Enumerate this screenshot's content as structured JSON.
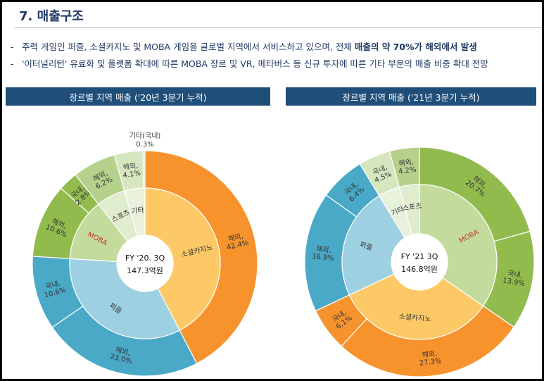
{
  "page": {
    "title": "7. 매출구조",
    "bullets": [
      {
        "prefix": "주력 게임인 퍼즐, 소셜카지노 및 MOBA 게임을 글로벌 지역에서 서비스하고 있으며, 전체 ",
        "bold": "매출의 약 70%가 해외에서 발생",
        "suffix": ""
      },
      {
        "prefix": "'이터널리턴' 유료화 및 플랫폼 확대에 따른 MOBA 장르 및 VR, 메타버스 등 신규 투자에 따른 기타 부문의 매출 비중 확대 전망",
        "bold": "",
        "suffix": ""
      }
    ]
  },
  "colors": {
    "casino_outer": "#f7932d",
    "casino_inner": "#fdc967",
    "puzzle_outer": "#4aa9c7",
    "puzzle_inner": "#9dd0e1",
    "moba_outer": "#92bb4e",
    "moba_inner": "#c3dc9e",
    "sports_outer": "#b6d18b",
    "sports_inner": "#dfeccd",
    "etc_outer": "#d6e6bf",
    "etc_inner": "#e8f1db",
    "moba_label": "#c0392b",
    "header_bg": "#1f4e79"
  },
  "chart_data": [
    {
      "type": "sunburst",
      "title": "장르별 지역 매출 ('20년 3분기 누적)",
      "center": [
        "FY '20. 3Q",
        "147.3억원"
      ],
      "inner": [
        {
          "name": "소셜카지노",
          "value": 42.4,
          "color": "casino_inner"
        },
        {
          "name": "퍼즐",
          "value": 33.6,
          "color": "puzzle_inner"
        },
        {
          "name": "MOBA",
          "value": 13.4,
          "color": "moba_inner"
        },
        {
          "name": "스포츠",
          "value": 6.2,
          "color": "sports_inner"
        },
        {
          "name": "기타",
          "value": 4.4,
          "color": "etc_inner"
        }
      ],
      "outer": [
        {
          "label": "해외, 42.4%",
          "value": 42.4,
          "color": "casino_outer"
        },
        {
          "label": "해외, 23.0%",
          "value": 23.0,
          "color": "puzzle_outer"
        },
        {
          "label": "국내, 10.6%",
          "value": 10.6,
          "color": "puzzle_outer"
        },
        {
          "label": "해외, 10.6%",
          "value": 10.6,
          "color": "moba_outer"
        },
        {
          "label": "국내, 2.8%",
          "value": 2.8,
          "color": "moba_outer"
        },
        {
          "label": "해외, 6.2%",
          "value": 6.2,
          "color": "sports_outer"
        },
        {
          "label": "해외, 4.1%",
          "value": 4.1,
          "color": "etc_outer"
        },
        {
          "label": "기타(국내) 0.3%",
          "value": 0.3,
          "color": "etc_outer"
        }
      ]
    },
    {
      "type": "sunburst",
      "title": "장르별 지역  매출 ('21년 3분기 누적)",
      "center": [
        "FY '21 3Q",
        "146.8억원"
      ],
      "inner": [
        {
          "name": "MOBA",
          "value": 34.6,
          "color": "moba_inner"
        },
        {
          "name": "소셜카지노",
          "value": 33.4,
          "color": "casino_inner"
        },
        {
          "name": "퍼즐",
          "value": 23.3,
          "color": "puzzle_inner"
        },
        {
          "name": "기타",
          "value": 4.5,
          "color": "etc_inner"
        },
        {
          "name": "스포츠",
          "value": 4.2,
          "color": "sports_inner"
        }
      ],
      "outer": [
        {
          "label": "해외, 20.7%",
          "value": 20.7,
          "color": "moba_outer"
        },
        {
          "label": "국내, 13.9%",
          "value": 13.9,
          "color": "moba_outer"
        },
        {
          "label": "해외, 27.3%",
          "value": 27.3,
          "color": "casino_outer"
        },
        {
          "label": "국내, 6.1%",
          "value": 6.1,
          "color": "casino_outer"
        },
        {
          "label": "해외, 16.9%",
          "value": 16.9,
          "color": "puzzle_outer"
        },
        {
          "label": "국내, 6.4%",
          "value": 6.4,
          "color": "puzzle_outer"
        },
        {
          "label": "국내, 4.5%",
          "value": 4.5,
          "color": "etc_outer"
        },
        {
          "label": "해외, 4.2%",
          "value": 4.2,
          "color": "sports_outer"
        }
      ]
    }
  ]
}
